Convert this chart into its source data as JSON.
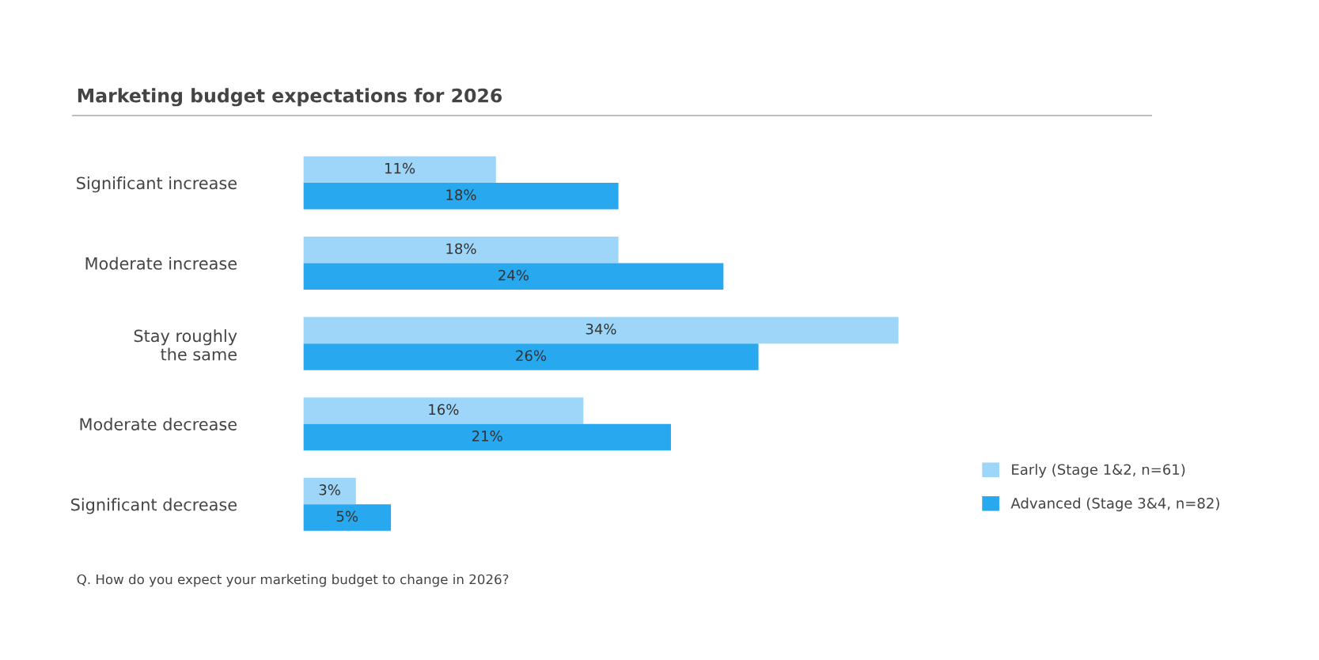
{
  "chart_data": {
    "type": "bar",
    "orientation": "horizontal",
    "title": "Marketing budget expectations for 2026",
    "categories": [
      "Significant increase",
      "Moderate increase",
      "Stay roughly\nthe same",
      "Moderate decrease",
      "Significant decrease"
    ],
    "series": [
      {
        "name": "Early (Stage 1&2, n=61)",
        "color": "#9dd6f8",
        "values": [
          11,
          18,
          34,
          16,
          3
        ],
        "value_labels": [
          "11%",
          "18%",
          "34%",
          "16%",
          "3%"
        ]
      },
      {
        "name": "Advanced (Stage 3&4, n=82)",
        "color": "#27a8ef",
        "values": [
          18,
          24,
          26,
          21,
          5
        ],
        "value_labels": [
          "18%",
          "24%",
          "26%",
          "21%",
          "5%"
        ]
      }
    ],
    "legend": "bottom right",
    "grid": false,
    "tick_labels": "y",
    "annotations": [
      "Q. How do you expect your marketing budget to change in 2026?"
    ]
  }
}
